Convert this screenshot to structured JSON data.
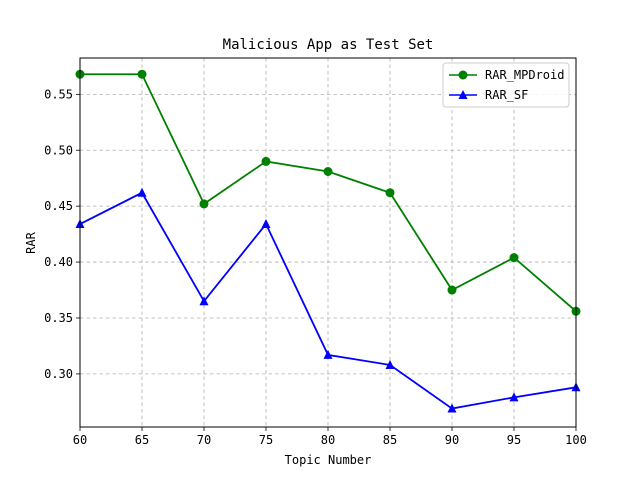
{
  "chart_data": {
    "type": "line",
    "title": "Malicious App as Test Set",
    "xlabel": "Topic Number",
    "ylabel": "RAR",
    "x": [
      60,
      65,
      70,
      75,
      80,
      85,
      90,
      95,
      100
    ],
    "xlim": [
      60,
      100
    ],
    "ylim": [
      0.2525,
      0.5825
    ],
    "xticks": [
      "60",
      "65",
      "70",
      "75",
      "80",
      "85",
      "90",
      "95",
      "100"
    ],
    "yticks": [
      "0.30",
      "0.35",
      "0.40",
      "0.45",
      "0.50",
      "0.55"
    ],
    "grid": true,
    "legend_position": "top-right",
    "series": [
      {
        "name": "RAR_MPDroid",
        "color": "#008000",
        "marker": "circle",
        "values": [
          0.568,
          0.568,
          0.452,
          0.49,
          0.481,
          0.462,
          0.375,
          0.404,
          0.356
        ]
      },
      {
        "name": "RAR_SF",
        "color": "#0000ff",
        "marker": "triangle",
        "values": [
          0.434,
          0.462,
          0.365,
          0.434,
          0.317,
          0.308,
          0.269,
          0.279,
          0.288
        ]
      }
    ]
  }
}
